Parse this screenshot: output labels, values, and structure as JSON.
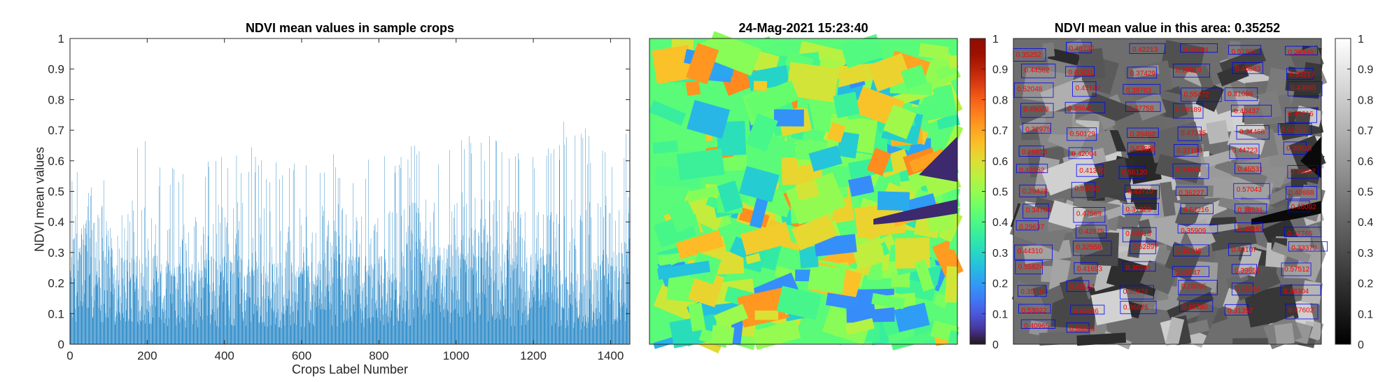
{
  "charts": [
    {
      "type": "bar",
      "title": "NDVI mean values in sample crops",
      "xlabel": "Crops Label Number",
      "ylabel": "NDVI mean values",
      "xlim": [
        0,
        1450
      ],
      "ylim": [
        0,
        1
      ],
      "xticks": [
        "0",
        "200",
        "400",
        "600",
        "800",
        "1000",
        "1200",
        "1400"
      ],
      "yticks": [
        "0",
        "0.1",
        "0.2",
        "0.3",
        "0.4",
        "0.5",
        "0.6",
        "0.7",
        "0.8",
        "0.9",
        "1"
      ],
      "bar_color": "#0072BD",
      "n_bars": 1450,
      "profile": {
        "x": [
          0,
          25,
          50,
          100,
          150,
          190,
          230,
          300,
          380,
          460,
          540,
          600,
          680,
          760,
          820,
          900,
          980,
          1050,
          1120,
          1200,
          1260,
          1300,
          1340,
          1400,
          1450
        ],
        "typical": [
          0.26,
          0.3,
          0.35,
          0.25,
          0.24,
          0.26,
          0.22,
          0.2,
          0.22,
          0.23,
          0.2,
          0.22,
          0.23,
          0.22,
          0.23,
          0.24,
          0.26,
          0.28,
          0.24,
          0.22,
          0.24,
          0.15,
          0.2,
          0.26,
          0.28
        ],
        "peak": [
          0.55,
          0.6,
          0.7,
          0.58,
          0.62,
          0.75,
          0.62,
          0.6,
          0.65,
          0.68,
          0.62,
          0.63,
          0.66,
          0.6,
          0.62,
          0.67,
          0.68,
          0.72,
          0.66,
          0.62,
          0.7,
          0.78,
          0.7,
          0.68,
          0.74
        ]
      }
    },
    {
      "type": "heatmap",
      "title": "24-Mag-2021 15:23:40",
      "colorbar": {
        "colormap": "turbo",
        "ticks": [
          "0",
          "0.1",
          "0.2",
          "0.3",
          "0.4",
          "0.5",
          "0.6",
          "0.7",
          "0.8",
          "0.9",
          "1"
        ],
        "lim": [
          0,
          1
        ]
      }
    },
    {
      "type": "heatmap",
      "title": "NDVI mean value in this area: 0.35252",
      "colorbar": {
        "colormap": "gray",
        "ticks": [
          "0",
          "0.1",
          "0.2",
          "0.3",
          "0.4",
          "0.5",
          "0.6",
          "0.7",
          "0.8",
          "0.9",
          "1"
        ],
        "lim": [
          0,
          1
        ]
      },
      "annotation_color": "#ff0000",
      "box_color": "#0000ff",
      "annotations": [
        "0.35252",
        "0.48736",
        "0.42213",
        "0.39914",
        "0.51807",
        "0.28344",
        "0.44562",
        "0.60631",
        "0.37429",
        "0.29910",
        "0.46883",
        "0.33217",
        "0.52048",
        "0.41120",
        "0.38763",
        "0.55472",
        "0.31086",
        "0.43895",
        "0.49023",
        "0.36641",
        "0.27758",
        "0.58189",
        "0.40437",
        "0.45216",
        "0.32975",
        "0.50129",
        "0.39402",
        "0.47315",
        "0.34468",
        "0.61297",
        "0.28816",
        "0.42004",
        "0.53589",
        "0.37180",
        "0.44723",
        "0.30615",
        "0.48952",
        "0.41346",
        "0.56120",
        "0.33894",
        "0.45531",
        "0.39087",
        "0.29428",
        "0.51652",
        "0.43710",
        "0.36227",
        "0.57043",
        "0.40888",
        "0.34705",
        "0.47569",
        "0.31923",
        "0.54216",
        "0.38531",
        "0.46092",
        "0.29637",
        "0.42875",
        "0.60018",
        "0.35909",
        "0.49361",
        "0.37765",
        "0.44310",
        "0.32558",
        "0.52897",
        "0.40146",
        "0.48107",
        "0.33370",
        "0.55824",
        "0.41693",
        "0.30281",
        "0.46747",
        "0.39659",
        "0.57512",
        "0.35018",
        "0.43164",
        "0.50476",
        "0.28095",
        "0.45988",
        "0.38304",
        "0.53022",
        "0.42436",
        "0.36875",
        "0.49790",
        "0.31357",
        "0.47602",
        "0.40965",
        "0.58843"
      ]
    }
  ]
}
